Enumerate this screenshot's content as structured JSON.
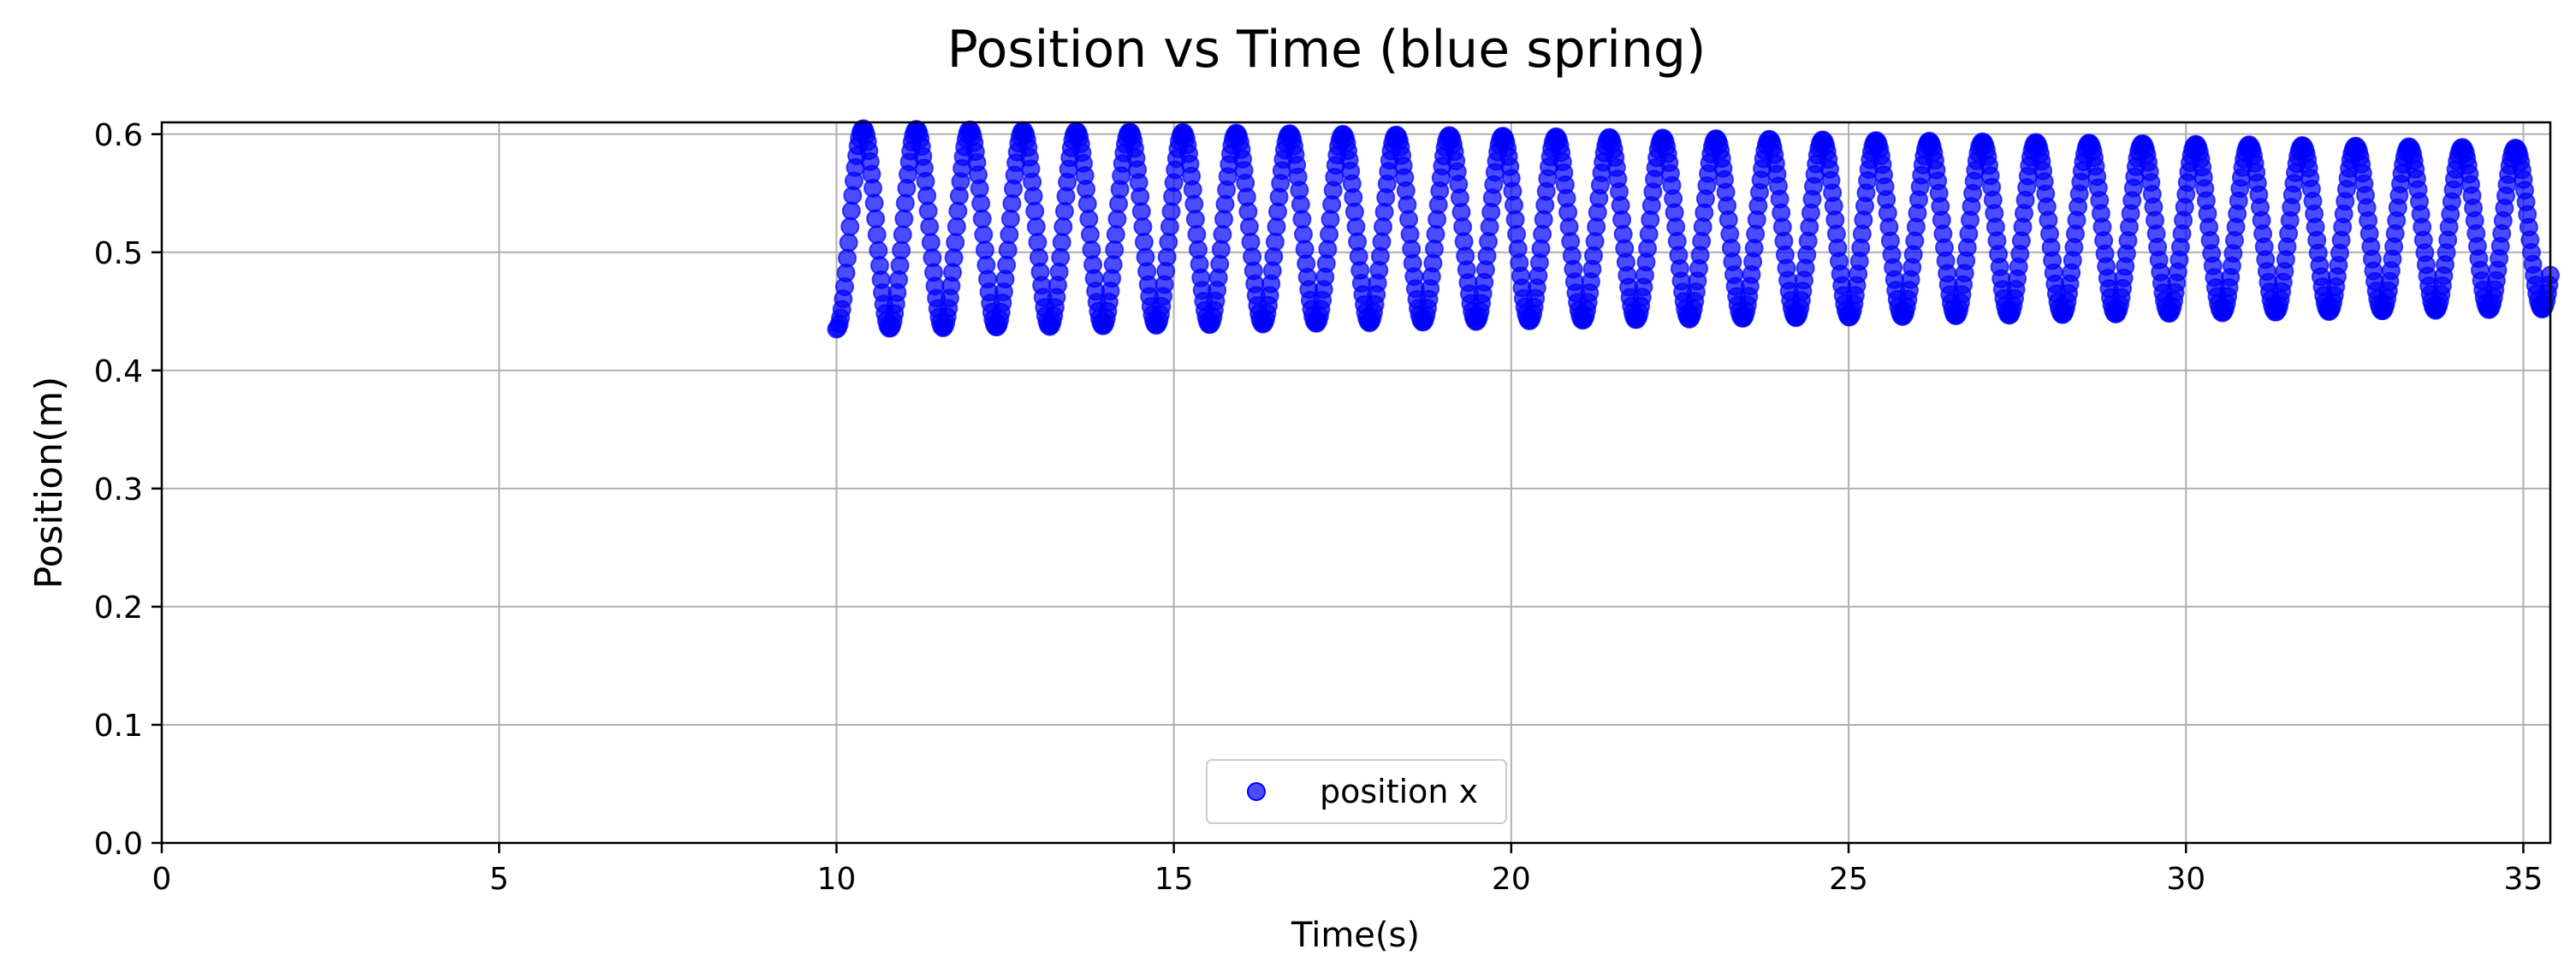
{
  "chart_data": {
    "type": "scatter",
    "title": "Position vs Time (blue spring)",
    "xlabel": "Time(s)",
    "ylabel": "Position(m)",
    "xlim": [
      0,
      35.4
    ],
    "ylim": [
      0,
      0.61
    ],
    "xticks": [
      0,
      5,
      10,
      15,
      20,
      25,
      30,
      35
    ],
    "yticks": [
      0.0,
      0.1,
      0.2,
      0.3,
      0.4,
      0.5,
      0.6
    ],
    "grid": true,
    "legend_position": "bottom-center",
    "series": [
      {
        "name": "position x",
        "color": "#0000ff",
        "marker": "circle",
        "sample_interval_s": 0.02,
        "t_start": 10.0,
        "t_end": 35.4,
        "oscillation_period_s": 0.79,
        "equilibrium_m": 0.52,
        "amplitude_start_m": 0.085,
        "amplitude_end_m": 0.068
      }
    ]
  }
}
